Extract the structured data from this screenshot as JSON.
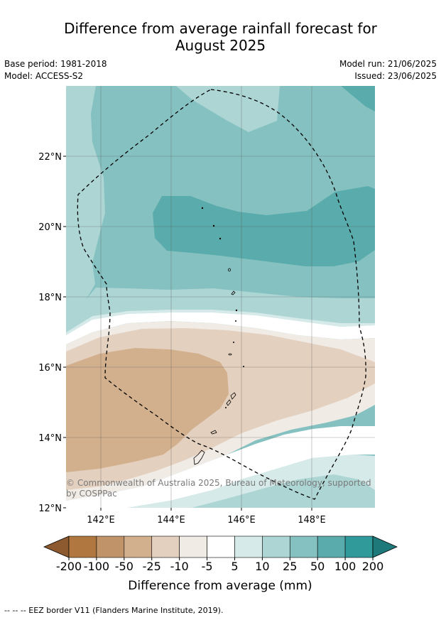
{
  "title_line1": "Difference from average rainfall forecast for",
  "title_line2": "August 2025",
  "meta": {
    "base_period": "Base period: 1981-2018",
    "model": "Model: ACCESS-S2",
    "model_run": "Model run: 21/06/2025",
    "issued": "Issued: 23/06/2025"
  },
  "map": {
    "lat_labels": [
      "22°N",
      "20°N",
      "18°N",
      "16°N",
      "14°N",
      "12°N"
    ],
    "lon_labels": [
      "142°E",
      "144°E",
      "146°E",
      "148°E"
    ],
    "copyright_line1": "© Commonwealth of Australia 2025, Bureau of Meteorology, supported",
    "copyright_line2": "by COSPPac"
  },
  "colorbar": {
    "ticks": [
      "-200",
      "-100",
      "-50",
      "-25",
      "-10",
      "-5",
      "5",
      "10",
      "25",
      "50",
      "100",
      "200"
    ],
    "colors": [
      "#8c5a2e",
      "#b07840",
      "#c09468",
      "#d2b08e",
      "#e4d0bf",
      "#f0ebe5",
      "#ffffff",
      "#d6eae9",
      "#acd5d4",
      "#86c1c1",
      "#5aabab",
      "#30999a",
      "#1e7a7a"
    ],
    "title": "Difference from average (mm)"
  },
  "footnote": "--  --  -- EEZ border V11 (Flanders Marine Institute, 2019)."
}
